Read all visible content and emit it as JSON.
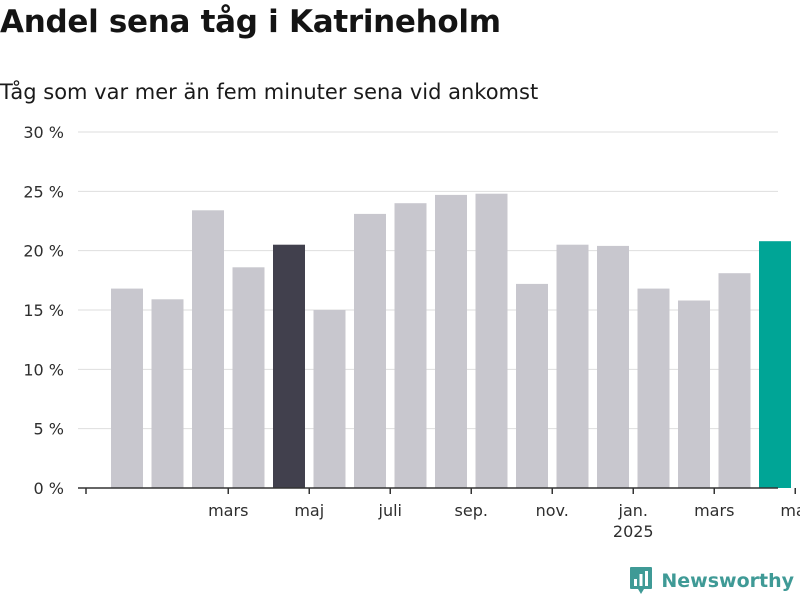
{
  "header": {
    "title": "Andel sena tåg i Katrineholm",
    "subtitle": "Tåg som var mer än fem minuter sena vid ankomst"
  },
  "brand": {
    "name": "Newsworthy",
    "icon": "bar-chart-logo-icon",
    "color": "#3f9a96"
  },
  "colors": {
    "bar_default": "#c8c7ce",
    "bar_highlight_previous_year": "#41404d",
    "bar_highlight_latest": "#00a596",
    "grid": "#dedede",
    "axis": "#333333"
  },
  "chart_data": {
    "type": "bar",
    "title": "Andel sena tåg i Katrineholm",
    "subtitle": "Tåg som var mer än fem minuter sena vid ankomst",
    "xlabel": "",
    "ylabel": "",
    "unit": "%",
    "categories": [
      "2024-01",
      "2024-02",
      "2024-03",
      "2024-04",
      "2024-05",
      "2024-06",
      "2024-07",
      "2024-08",
      "2024-09",
      "2024-10",
      "2024-11",
      "2024-12",
      "2025-01",
      "2025-02",
      "2025-03",
      "2025-04",
      "2025-05"
    ],
    "values": [
      16.8,
      15.9,
      23.4,
      18.6,
      20.5,
      15.0,
      23.1,
      24.0,
      24.7,
      24.8,
      17.2,
      20.5,
      20.4,
      16.8,
      15.8,
      18.1,
      20.8
    ],
    "highlight": {
      "2024-05": "bar_highlight_previous_year",
      "2025-05": "bar_highlight_latest"
    },
    "x_ticks": [
      {
        "month": "2024-03",
        "label": "mars",
        "sublabel": ""
      },
      {
        "month": "2024-05",
        "label": "maj",
        "sublabel": ""
      },
      {
        "month": "2024-07",
        "label": "juli",
        "sublabel": ""
      },
      {
        "month": "2024-09",
        "label": "sep.",
        "sublabel": ""
      },
      {
        "month": "2024-11",
        "label": "nov.",
        "sublabel": ""
      },
      {
        "month": "2025-01",
        "label": "jan.",
        "sublabel": "2025"
      },
      {
        "month": "2025-03",
        "label": "mars",
        "sublabel": ""
      },
      {
        "month": "2025-05",
        "label": "maj",
        "sublabel": ""
      }
    ],
    "y_ticks": [
      0,
      5,
      10,
      15,
      20,
      25,
      30
    ],
    "y_tick_labels": [
      "0 %",
      "5 %",
      "10 %",
      "15 %",
      "20 %",
      "25 %",
      "30 %"
    ],
    "ylim": [
      0,
      30
    ],
    "grid": true,
    "legend": "none"
  }
}
